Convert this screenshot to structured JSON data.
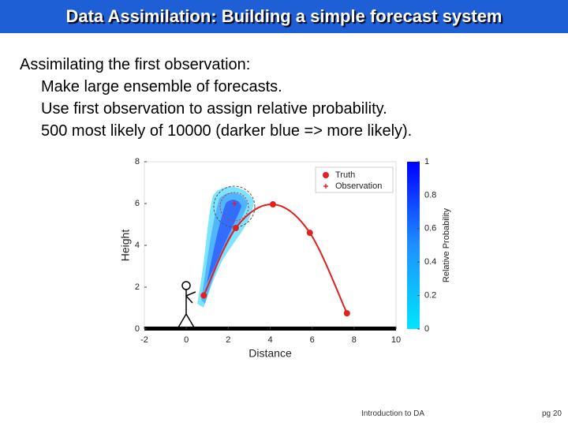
{
  "slide": {
    "title": "Data Assimilation: Building a simple forecast system",
    "lines": [
      "Assimilating the first observation:",
      "Make large ensemble of forecasts.",
      "Use first observation to assign relative probability.",
      "500 most likely of 10000 (darker blue => more likely)."
    ],
    "footer": "Introduction to DA",
    "page": "pg 20"
  },
  "chart_data": {
    "type": "scatter",
    "x_label": "Distance",
    "y_label": "Height",
    "xlim": [
      -2,
      10
    ],
    "xticks": [
      -2,
      0,
      2,
      4,
      6,
      8,
      10
    ],
    "ylim": [
      0,
      8
    ],
    "yticks": [
      0,
      2,
      4,
      6,
      8
    ],
    "series": [
      {
        "name": "Truth",
        "color": "#e32020",
        "marker": "dot",
        "line": true,
        "x": [
          0.83,
          2.36,
          4.13,
          5.89,
          7.66
        ],
        "values": [
          1.6,
          4.83,
          5.96,
          4.6,
          0.75
        ]
      },
      {
        "name": "Observation",
        "color": "#e32020",
        "marker": "plus",
        "line": false,
        "x": [
          2.3
        ],
        "values": [
          6.0
        ]
      }
    ],
    "colorbar": {
      "label": "Relative Probability",
      "lim": [
        0,
        1
      ],
      "ticks": [
        0,
        0.2,
        0.4,
        0.6,
        0.8,
        1
      ]
    }
  }
}
